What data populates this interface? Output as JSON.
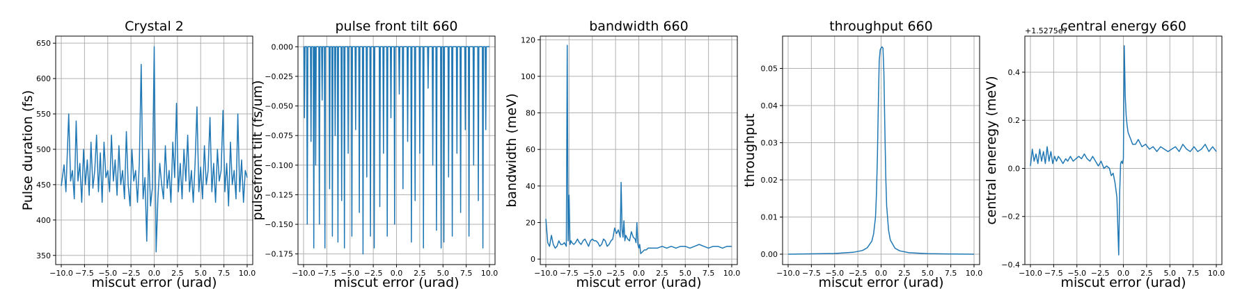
{
  "chart_data": [
    {
      "type": "line",
      "title": "Crystal 2",
      "xlabel": "miscut error (urad)",
      "ylabel": "Pulse duration (fs)",
      "xlim": [
        -10.6,
        10.6
      ],
      "ylim": [
        337,
        660
      ],
      "xticks": [
        -10.0,
        -7.5,
        -5.0,
        -2.5,
        0.0,
        2.5,
        5.0,
        7.5,
        10.0
      ],
      "xticklabels": [
        "−10.0",
        "−7.5",
        "−5.0",
        "−2.5",
        "0.0",
        "2.5",
        "5.0",
        "7.5",
        "10.0"
      ],
      "yticks": [
        350,
        400,
        450,
        500,
        550,
        600,
        650
      ],
      "yticklabels": [
        "350",
        "400",
        "450",
        "500",
        "550",
        "600",
        "650"
      ],
      "grid": true,
      "color": "#1f77b4",
      "series": [
        {
          "x": [
            -10.0,
            -9.7,
            -9.5,
            -9.2,
            -9.0,
            -8.8,
            -8.6,
            -8.4,
            -8.2,
            -8.0,
            -7.8,
            -7.6,
            -7.4,
            -7.2,
            -7.0,
            -6.8,
            -6.6,
            -6.4,
            -6.2,
            -6.0,
            -5.8,
            -5.6,
            -5.4,
            -5.2,
            -5.0,
            -4.8,
            -4.6,
            -4.4,
            -4.2,
            -4.0,
            -3.8,
            -3.6,
            -3.4,
            -3.2,
            -3.0,
            -2.8,
            -2.6,
            -2.4,
            -2.2,
            -2.0,
            -1.8,
            -1.6,
            -1.4,
            -1.2,
            -1.0,
            -0.8,
            -0.6,
            -0.4,
            -0.2,
            0.0,
            0.2,
            0.4,
            0.6,
            0.8,
            1.0,
            1.2,
            1.4,
            1.6,
            1.8,
            2.0,
            2.2,
            2.4,
            2.6,
            2.8,
            3.0,
            3.2,
            3.4,
            3.6,
            3.8,
            4.0,
            4.2,
            4.4,
            4.6,
            4.8,
            5.0,
            5.2,
            5.4,
            5.6,
            5.8,
            6.0,
            6.2,
            6.4,
            6.6,
            6.8,
            7.0,
            7.2,
            7.4,
            7.6,
            7.8,
            8.0,
            8.2,
            8.4,
            8.6,
            8.8,
            9.0,
            9.2,
            9.4,
            9.6,
            9.8,
            10.0
          ],
          "y": [
            448,
            478,
            440,
            550,
            455,
            470,
            430,
            540,
            455,
            480,
            425,
            500,
            450,
            485,
            435,
            510,
            445,
            470,
            520,
            440,
            495,
            425,
            510,
            460,
            470,
            440,
            520,
            455,
            485,
            435,
            505,
            450,
            470,
            430,
            525,
            450,
            420,
            500,
            455,
            470,
            425,
            480,
            620,
            430,
            460,
            370,
            500,
            420,
            445,
            645,
            355,
            430,
            480,
            450,
            430,
            505,
            445,
            470,
            425,
            510,
            460,
            565,
            440,
            480,
            430,
            500,
            455,
            520,
            440,
            470,
            425,
            480,
            560,
            440,
            475,
            430,
            505,
            450,
            470,
            545,
            440,
            480,
            425,
            500,
            455,
            470,
            555,
            440,
            480,
            420,
            510,
            450,
            470,
            430,
            550,
            440,
            485,
            425,
            470,
            460
          ]
        }
      ]
    },
    {
      "type": "line",
      "title": "pulse front tilt 660",
      "xlabel": "miscut error (urad)",
      "ylabel": "pulsefront tilt (fs/um)",
      "xlim": [
        -10.6,
        10.6
      ],
      "ylim": [
        -0.184,
        0.009
      ],
      "xticks": [
        -10.0,
        -7.5,
        -5.0,
        -2.5,
        0.0,
        2.5,
        5.0,
        7.5,
        10.0
      ],
      "xticklabels": [
        "−10.0",
        "−7.5",
        "−5.0",
        "−2.5",
        "0.0",
        "2.5",
        "5.0",
        "7.5",
        "10.0"
      ],
      "yticks": [
        0.0,
        -0.025,
        -0.05,
        -0.075,
        -0.1,
        -0.125,
        -0.15,
        -0.175
      ],
      "yticklabels": [
        "0.000",
        "−0.025",
        "−0.050",
        "−0.075",
        "−0.100",
        "−0.125",
        "−0.150",
        "−0.175"
      ],
      "grid": true,
      "color": "#1f77b4",
      "baseline": 0.0,
      "spikes": [
        {
          "x": -9.9,
          "y": -0.06
        },
        {
          "x": -9.6,
          "y": -0.15
        },
        {
          "x": -9.2,
          "y": -0.08
        },
        {
          "x": -8.9,
          "y": -0.17
        },
        {
          "x": -8.7,
          "y": -0.1
        },
        {
          "x": -8.3,
          "y": -0.15
        },
        {
          "x": -8.0,
          "y": -0.045
        },
        {
          "x": -7.7,
          "y": -0.17
        },
        {
          "x": -7.2,
          "y": -0.12
        },
        {
          "x": -6.9,
          "y": -0.16
        },
        {
          "x": -6.6,
          "y": -0.075
        },
        {
          "x": -6.3,
          "y": -0.165
        },
        {
          "x": -5.9,
          "y": -0.13
        },
        {
          "x": -5.6,
          "y": -0.17
        },
        {
          "x": -5.2,
          "y": -0.09
        },
        {
          "x": -4.8,
          "y": -0.16
        },
        {
          "x": -4.4,
          "y": -0.07
        },
        {
          "x": -4.0,
          "y": -0.14
        },
        {
          "x": -3.6,
          "y": -0.175
        },
        {
          "x": -3.2,
          "y": -0.11
        },
        {
          "x": -2.8,
          "y": -0.16
        },
        {
          "x": -2.4,
          "y": -0.17
        },
        {
          "x": -1.8,
          "y": -0.135
        },
        {
          "x": -1.4,
          "y": -0.09
        },
        {
          "x": -1.0,
          "y": -0.16
        },
        {
          "x": -0.6,
          "y": -0.06
        },
        {
          "x": -0.2,
          "y": -0.15
        },
        {
          "x": 0.3,
          "y": -0.04
        },
        {
          "x": 0.7,
          "y": -0.12
        },
        {
          "x": 1.2,
          "y": -0.08
        },
        {
          "x": 1.6,
          "y": -0.165
        },
        {
          "x": 2.0,
          "y": -0.13
        },
        {
          "x": 2.5,
          "y": -0.09
        },
        {
          "x": 2.9,
          "y": -0.17
        },
        {
          "x": 3.4,
          "y": -0.035
        },
        {
          "x": 3.9,
          "y": -0.1
        },
        {
          "x": 4.3,
          "y": -0.155
        },
        {
          "x": 4.8,
          "y": -0.17
        },
        {
          "x": 5.1,
          "y": -0.165
        },
        {
          "x": 5.6,
          "y": -0.11
        },
        {
          "x": 6.0,
          "y": -0.16
        },
        {
          "x": 6.5,
          "y": -0.09
        },
        {
          "x": 6.9,
          "y": -0.14
        },
        {
          "x": 7.4,
          "y": -0.07
        },
        {
          "x": 7.8,
          "y": -0.16
        },
        {
          "x": 8.3,
          "y": -0.1
        },
        {
          "x": 8.8,
          "y": -0.13
        },
        {
          "x": 9.3,
          "y": -0.17
        },
        {
          "x": 9.6,
          "y": -0.07
        }
      ]
    },
    {
      "type": "line",
      "title": "bandwidth 660",
      "xlabel": "miscut error (urad)",
      "ylabel": "bandwidth (meV)",
      "xlim": [
        -10.6,
        10.6
      ],
      "ylim": [
        -3,
        122
      ],
      "xticks": [
        -10.0,
        -7.5,
        -5.0,
        -2.5,
        0.0,
        2.5,
        5.0,
        7.5,
        10.0
      ],
      "xticklabels": [
        "−10.0",
        "−7.5",
        "−5.0",
        "−2.5",
        "0.0",
        "2.5",
        "5.0",
        "7.5",
        "10.0"
      ],
      "yticks": [
        0,
        20,
        40,
        60,
        80,
        100,
        120
      ],
      "yticklabels": [
        "0",
        "20",
        "40",
        "60",
        "80",
        "100",
        "120"
      ],
      "grid": true,
      "color": "#1f77b4",
      "series": [
        {
          "x": [
            -10.0,
            -9.8,
            -9.6,
            -9.4,
            -9.2,
            -9.0,
            -8.8,
            -8.6,
            -8.4,
            -8.2,
            -8.0,
            -7.8,
            -7.7,
            -7.6,
            -7.5,
            -7.4,
            -7.3,
            -7.2,
            -7.0,
            -6.8,
            -6.6,
            -6.4,
            -6.2,
            -6.0,
            -5.8,
            -5.6,
            -5.4,
            -5.2,
            -5.0,
            -4.8,
            -4.6,
            -4.4,
            -4.2,
            -4.0,
            -3.8,
            -3.6,
            -3.4,
            -3.2,
            -3.0,
            -2.8,
            -2.6,
            -2.4,
            -2.2,
            -2.0,
            -1.9,
            -1.8,
            -1.7,
            -1.6,
            -1.5,
            -1.4,
            -1.2,
            -1.0,
            -0.8,
            -0.6,
            -0.4,
            -0.3,
            -0.2,
            -0.1,
            0.0,
            0.1,
            0.2,
            0.4,
            0.6,
            0.8,
            1.0,
            1.5,
            2.0,
            2.5,
            3.0,
            3.5,
            4.0,
            4.5,
            5.0,
            5.5,
            6.0,
            6.5,
            7.0,
            7.5,
            8.0,
            8.5,
            9.0,
            9.5,
            10.0
          ],
          "y": [
            22,
            9,
            7,
            13,
            8,
            6,
            7,
            10,
            8,
            8,
            9,
            7,
            117,
            10,
            35,
            8,
            10,
            9,
            8,
            9,
            11,
            9,
            8,
            10,
            11,
            9,
            7,
            10,
            11,
            10,
            10,
            9,
            7,
            8,
            11,
            10,
            7,
            8,
            10,
            11,
            17,
            14,
            16,
            12,
            42,
            16,
            12,
            21,
            10,
            13,
            11,
            10,
            15,
            12,
            11,
            9,
            20,
            8,
            6,
            8,
            3,
            4,
            5,
            5,
            6,
            6,
            6,
            7,
            6,
            7,
            6,
            7,
            7,
            6,
            7,
            8,
            7,
            6,
            7,
            7,
            6,
            7,
            7
          ]
        }
      ]
    },
    {
      "type": "line",
      "title": "throughput 660",
      "xlabel": "miscut error (urad)",
      "ylabel": "throughput",
      "xlim": [
        -10.6,
        10.6
      ],
      "ylim": [
        -0.0028,
        0.0587
      ],
      "xticks": [
        -10.0,
        -7.5,
        -5.0,
        -2.5,
        0.0,
        2.5,
        5.0,
        7.5,
        10.0
      ],
      "xticklabels": [
        "−10.0",
        "−7.5",
        "−5.0",
        "−2.5",
        "0.0",
        "2.5",
        "5.0",
        "7.5",
        "10.0"
      ],
      "yticks": [
        0.0,
        0.01,
        0.02,
        0.03,
        0.04,
        0.05
      ],
      "yticklabels": [
        "0.00",
        "0.01",
        "0.02",
        "0.03",
        "0.04",
        "0.05"
      ],
      "grid": true,
      "color": "#1f77b4",
      "series": [
        {
          "x": [
            -10.0,
            -7.5,
            -5.0,
            -3.0,
            -2.0,
            -1.5,
            -1.0,
            -0.8,
            -0.6,
            -0.5,
            -0.4,
            -0.3,
            -0.2,
            -0.1,
            0.0,
            0.1,
            0.2,
            0.3,
            0.4,
            0.5,
            0.6,
            0.8,
            1.0,
            1.5,
            2.0,
            3.0,
            5.0,
            7.5,
            10.0
          ],
          "y": [
            0.0,
            0.0001,
            0.0002,
            0.0005,
            0.001,
            0.0017,
            0.0035,
            0.0055,
            0.01,
            0.016,
            0.026,
            0.04,
            0.052,
            0.055,
            0.0555,
            0.0558,
            0.0555,
            0.049,
            0.035,
            0.021,
            0.013,
            0.0065,
            0.0038,
            0.0016,
            0.0009,
            0.0004,
            0.00015,
            5e-05,
            0.0
          ]
        }
      ]
    },
    {
      "type": "line",
      "title": "central energy 660",
      "xlabel": "miscut error (urad)",
      "ylabel": "central eneregy (meV)",
      "offset_text": "+1.5275e7",
      "xlim": [
        -10.6,
        10.6
      ],
      "ylim": [
        -0.4,
        0.55
      ],
      "xticks": [
        -10.0,
        -7.5,
        -5.0,
        -2.5,
        0.0,
        2.5,
        5.0,
        7.5,
        10.0
      ],
      "xticklabels": [
        "−10.0",
        "−7.5",
        "−5.0",
        "−2.5",
        "0.0",
        "2.5",
        "5.0",
        "7.5",
        "10.0"
      ],
      "yticks": [
        -0.4,
        -0.2,
        0.0,
        0.2,
        0.4
      ],
      "yticklabels": [
        "−0.4",
        "−0.2",
        "0.0",
        "0.2",
        "0.4"
      ],
      "grid": true,
      "color": "#1f77b4",
      "series": [
        {
          "x": [
            -10.0,
            -9.8,
            -9.6,
            -9.4,
            -9.2,
            -9.0,
            -8.8,
            -8.6,
            -8.4,
            -8.2,
            -8.0,
            -7.8,
            -7.6,
            -7.4,
            -7.2,
            -7.0,
            -6.8,
            -6.5,
            -6.2,
            -6.0,
            -5.7,
            -5.4,
            -5.1,
            -4.8,
            -4.5,
            -4.2,
            -3.9,
            -3.6,
            -3.3,
            -3.0,
            -2.7,
            -2.4,
            -2.1,
            -1.8,
            -1.5,
            -1.3,
            -1.1,
            -0.9,
            -0.7,
            -0.5,
            -0.4,
            -0.3,
            -0.2,
            -0.1,
            0.0,
            0.1,
            0.2,
            0.3,
            0.4,
            0.5,
            0.6,
            0.8,
            1.0,
            1.3,
            1.6,
            2.0,
            2.4,
            2.8,
            3.2,
            3.6,
            4.0,
            4.4,
            4.8,
            5.2,
            5.6,
            6.0,
            6.4,
            6.8,
            7.2,
            7.6,
            8.0,
            8.4,
            8.8,
            9.2,
            9.6,
            10.0
          ],
          "y": [
            0.01,
            0.08,
            0.03,
            0.06,
            0.02,
            0.08,
            0.03,
            0.07,
            0.02,
            0.09,
            0.03,
            0.07,
            0.02,
            0.05,
            0.03,
            0.05,
            0.04,
            0.02,
            0.04,
            0.03,
            0.05,
            0.03,
            0.04,
            0.05,
            0.04,
            0.06,
            0.04,
            0.03,
            0.05,
            0.03,
            0.01,
            0.03,
            0.0,
            0.01,
            0.0,
            -0.03,
            -0.02,
            -0.06,
            -0.12,
            -0.36,
            -0.1,
            0.02,
            0.03,
            0.02,
            0.04,
            0.51,
            0.3,
            0.22,
            0.18,
            0.15,
            0.14,
            0.12,
            0.1,
            0.1,
            0.12,
            0.09,
            0.1,
            0.08,
            0.09,
            0.07,
            0.09,
            0.08,
            0.07,
            0.08,
            0.09,
            0.07,
            0.1,
            0.08,
            0.07,
            0.09,
            0.07,
            0.08,
            0.1,
            0.07,
            0.09,
            0.07
          ]
        }
      ]
    }
  ]
}
